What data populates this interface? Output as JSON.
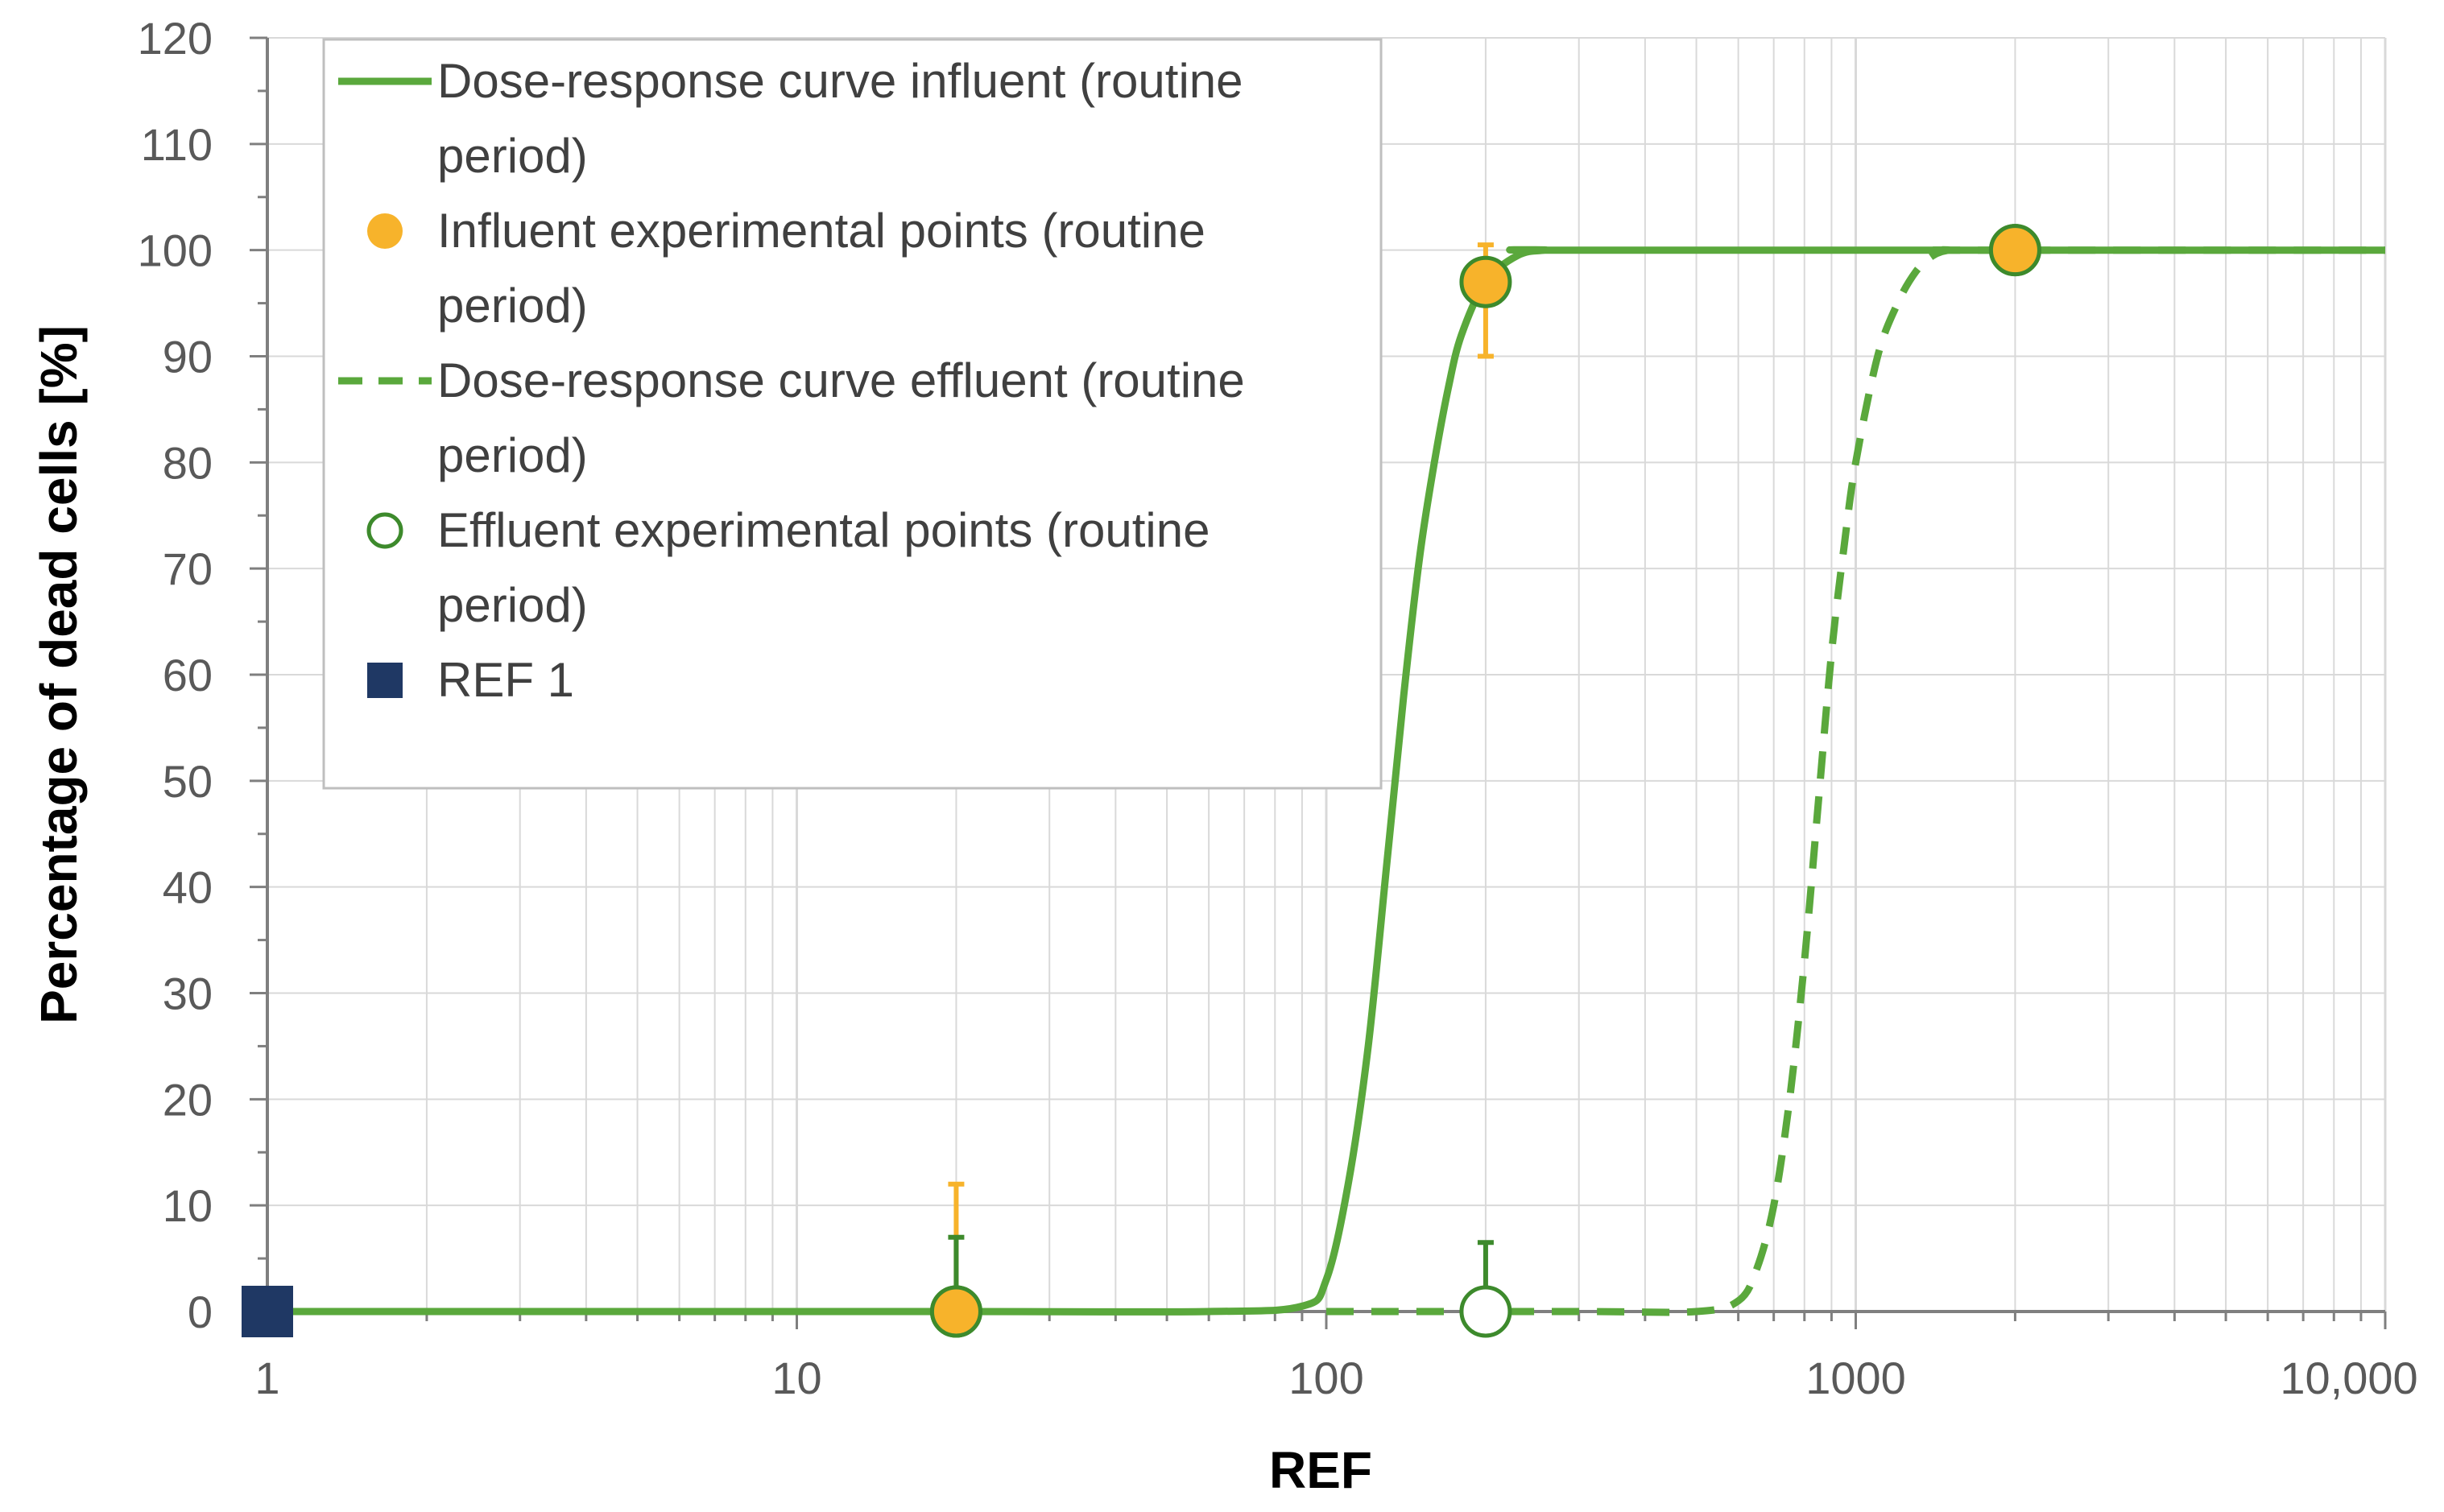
{
  "chart_data": {
    "type": "line",
    "xlabel": "REF",
    "ylabel": "Percentage of dead cells [%]",
    "x_scale": "log",
    "xlim": [
      1,
      10000
    ],
    "ylim": [
      0,
      120
    ],
    "grid": true,
    "legend_position": "top-left",
    "x_ticks": [
      {
        "value": 1,
        "label": "1"
      },
      {
        "value": 10,
        "label": "10"
      },
      {
        "value": 100,
        "label": "100"
      },
      {
        "value": 1000,
        "label": "1000"
      },
      {
        "value": 10000,
        "label": "10,000"
      }
    ],
    "y_ticks": [
      0,
      10,
      20,
      30,
      40,
      50,
      60,
      70,
      80,
      90,
      100,
      110,
      120
    ],
    "colors": {
      "green": "#5aa83c",
      "dark_green": "#3d8a2c",
      "orange": "#f7b32b",
      "navy": "#1f3864",
      "grid": "#d9d9d9"
    },
    "series": [
      {
        "name": "Dose-response curve influent (routine period)",
        "kind": "curve",
        "style": "solid",
        "color": "#5aa83c",
        "x": [
          1,
          20,
          60,
          90,
          100,
          110,
          120,
          130,
          140,
          150,
          160,
          170,
          180,
          200,
          230,
          260,
          300,
          10000
        ],
        "y": [
          0,
          0,
          0,
          0.5,
          3,
          12,
          25,
          42,
          58,
          71,
          80,
          87,
          92,
          97,
          99.5,
          100,
          100,
          100
        ]
      },
      {
        "name": "Influent experimental points (routine period)",
        "kind": "points",
        "marker": "filled-circle",
        "color": "#f7b32b",
        "points": [
          {
            "x": 20,
            "y": 0,
            "err_up": 12,
            "err_down": 0
          },
          {
            "x": 200,
            "y": 97,
            "err_up": 3.5,
            "err_down": 7
          },
          {
            "x": 2000,
            "y": 100,
            "err_up": 0,
            "err_down": 0
          }
        ]
      },
      {
        "name": "Dose-response curve effluent (routine period)",
        "kind": "curve",
        "style": "dashed",
        "color": "#5aa83c",
        "x": [
          100,
          300,
          500,
          600,
          650,
          700,
          750,
          800,
          850,
          900,
          950,
          1000,
          1100,
          1200,
          1300,
          1400,
          1500,
          1600,
          10000
        ],
        "y": [
          0,
          0,
          0,
          1,
          4,
          10,
          20,
          33,
          48,
          62,
          72,
          80,
          90,
          95,
          98,
          99.5,
          100,
          100,
          100
        ]
      },
      {
        "name": "Effluent experimental points (routine period)",
        "kind": "points",
        "marker": "open-circle",
        "color": "#3d8a2c",
        "points": [
          {
            "x": 20,
            "y": 0,
            "err_up": 7,
            "err_down": 0
          },
          {
            "x": 200,
            "y": 0,
            "err_up": 6.5,
            "err_down": 0
          },
          {
            "x": 2000,
            "y": 100,
            "err_up": 0,
            "err_down": 0
          }
        ]
      },
      {
        "name": "REF 1",
        "kind": "points",
        "marker": "filled-square",
        "color": "#1f3864",
        "points": [
          {
            "x": 1,
            "y": 0,
            "err_up": 0,
            "err_down": 0
          }
        ]
      }
    ],
    "legend": [
      {
        "lines": [
          "Dose-response curve influent (routine",
          "period)"
        ],
        "symbol": "line-solid",
        "color": "#5aa83c"
      },
      {
        "lines": [
          "Influent experimental points (routine",
          "period)"
        ],
        "symbol": "circle-filled",
        "color": "#f7b32b"
      },
      {
        "lines": [
          "Dose-response curve effluent (routine",
          "period)"
        ],
        "symbol": "line-dashed",
        "color": "#5aa83c"
      },
      {
        "lines": [
          "Effluent experimental points (routine",
          "period)"
        ],
        "symbol": "circle-open",
        "color": "#3d8a2c"
      },
      {
        "lines": [
          "REF 1"
        ],
        "symbol": "square-filled",
        "color": "#1f3864"
      }
    ]
  }
}
